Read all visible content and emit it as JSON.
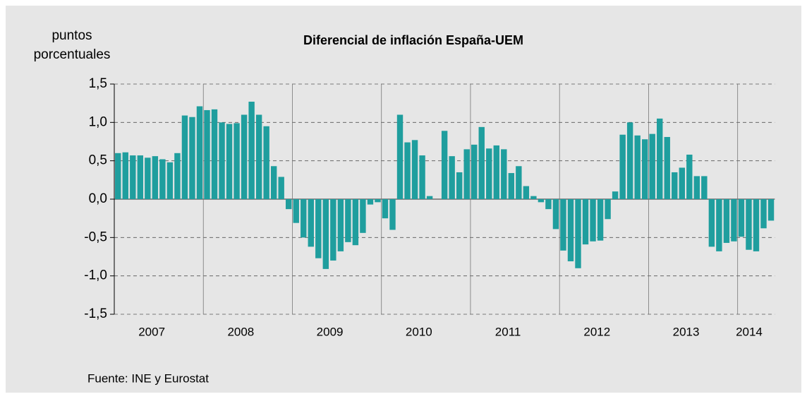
{
  "chart_data": {
    "type": "bar",
    "title": "Diferencial de inflación España-UEM",
    "ylabel": [
      "puntos",
      "porcentuales"
    ],
    "source": "Fuente: INE y Eurostat",
    "color": "#1f9e9e",
    "categories": [
      "2007",
      null,
      null,
      null,
      null,
      null,
      null,
      null,
      null,
      null,
      null,
      null,
      "2008",
      null,
      null,
      null,
      null,
      null,
      null,
      null,
      null,
      null,
      null,
      null,
      "2009",
      null,
      null,
      null,
      null,
      null,
      null,
      null,
      null,
      null,
      null,
      null,
      "2010",
      null,
      null,
      null,
      null,
      null,
      null,
      null,
      null,
      null,
      null,
      null,
      "2011",
      null,
      null,
      null,
      null,
      null,
      null,
      null,
      null,
      null,
      null,
      null,
      "2012",
      null,
      null,
      null,
      null,
      null,
      null,
      null,
      null,
      null,
      null,
      null,
      "2013",
      null,
      null,
      null,
      null,
      null,
      null,
      null,
      null,
      null,
      null,
      null,
      "2014",
      null,
      null,
      null,
      null
    ],
    "values": [
      0.6,
      0.61,
      0.57,
      0.57,
      0.54,
      0.56,
      0.52,
      0.48,
      0.6,
      1.09,
      1.07,
      1.21,
      1.16,
      1.17,
      1.0,
      0.98,
      0.99,
      1.1,
      1.27,
      1.1,
      0.95,
      0.43,
      0.29,
      -0.13,
      -0.31,
      -0.5,
      -0.62,
      -0.77,
      -0.91,
      -0.8,
      -0.68,
      -0.56,
      -0.6,
      -0.44,
      -0.07,
      -0.04,
      -0.25,
      -0.4,
      1.1,
      0.74,
      0.77,
      0.57,
      0.04,
      0,
      0.89,
      0.56,
      0.35,
      0.65,
      0.71,
      0.94,
      0.66,
      0.7,
      0.65,
      0.34,
      0.43,
      0.17,
      0.04,
      -0.04,
      -0.13,
      -0.39,
      -0.67,
      -0.81,
      -0.9,
      -0.59,
      -0.55,
      -0.54,
      -0.26,
      0.1,
      0.84,
      1.0,
      0.83,
      0.78,
      0.85,
      1.05,
      0.81,
      0.35,
      0.41,
      0.58,
      0.3,
      0.3,
      -0.62,
      -0.68,
      -0.57,
      -0.55,
      -0.49,
      -0.66,
      -0.68,
      -0.38,
      -0.28
    ],
    "ylim": [
      -1.5,
      1.5
    ],
    "yticks": [
      {
        "value": -1.5,
        "label": "-1,5"
      },
      {
        "value": -1,
        "label": "-1,0"
      },
      {
        "value": -0.5,
        "label": "-0,5"
      },
      {
        "value": 0,
        "label": "0,0"
      },
      {
        "value": 0.5,
        "label": "0,5"
      },
      {
        "value": 1,
        "label": "1,0"
      },
      {
        "value": 1.5,
        "label": "1,5"
      }
    ],
    "grid": true
  }
}
